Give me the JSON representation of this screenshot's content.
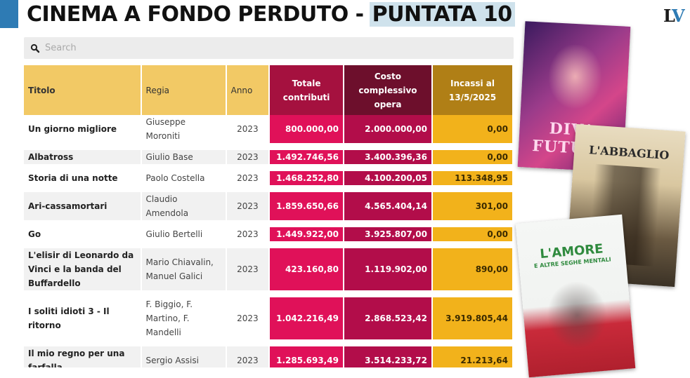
{
  "header": {
    "title_main": "CINEMA A FONDO PERDUTO -",
    "title_highlight": "PUNTATA 10",
    "logo_l": "L",
    "logo_v": "V",
    "accent_color": "#2e7bb4"
  },
  "search": {
    "placeholder": "Search",
    "icon": "search-icon"
  },
  "table": {
    "headers": {
      "titolo": "Titolo",
      "regia": "Regia",
      "anno": "Anno",
      "contributi": "Totale contributi",
      "costo": "Costo complessivo opera",
      "incassi": "Incassi al 13/5/2025"
    },
    "rows": [
      {
        "titolo": "Un giorno migliore",
        "regia": "Giuseppe Moroniti",
        "anno": "2023",
        "contributi": "800.000,00",
        "costo": "2.000.000,00",
        "incassi": "0,00"
      },
      {
        "titolo": "Albatross",
        "regia": "Giulio Base",
        "anno": "2023",
        "contributi": "1.492.746,56",
        "costo": "3.400.396,36",
        "incassi": "0,00"
      },
      {
        "titolo": "Storia di una notte",
        "regia": "Paolo Costella",
        "anno": "2023",
        "contributi": "1.468.252,80",
        "costo": "4.100.200,05",
        "incassi": "113.348,95"
      },
      {
        "titolo": "Ari-cassamortari",
        "regia": "Claudio Amendola",
        "anno": "2023",
        "contributi": "1.859.650,66",
        "costo": "4.565.404,14",
        "incassi": "301,00"
      },
      {
        "titolo": "Go",
        "regia": "Giulio Bertelli",
        "anno": "2023",
        "contributi": "1.449.922,00",
        "costo": "3.925.807,00",
        "incassi": "0,00"
      },
      {
        "titolo": "L'elisir di Leonardo da Vinci e la banda del Buffardello",
        "regia": "Mario Chiavalin, Manuel Galici",
        "anno": "2023",
        "contributi": "423.160,80",
        "costo": "1.119.902,00",
        "incassi": "890,00"
      },
      {
        "titolo": "I soliti idioti 3 - Il ritorno",
        "regia": "F. Biggio, F. Martino, F. Mandelli",
        "anno": "2023",
        "contributi": "1.042.216,49",
        "costo": "2.868.523,42",
        "incassi": "3.919.805,44"
      },
      {
        "titolo": "Il mio regno per una farfalla",
        "regia": "Sergio Assisi",
        "anno": "2023",
        "contributi": "1.285.693,49",
        "costo": "3.514.233,72",
        "incassi": "21.213,64"
      }
    ]
  },
  "posters": [
    {
      "title": "DIVA FUTURA"
    },
    {
      "title": "L'ABBAGLIO"
    },
    {
      "title": "L'AMORE",
      "subtitle": "E ALTRE SEGHE MENTALI"
    }
  ]
}
